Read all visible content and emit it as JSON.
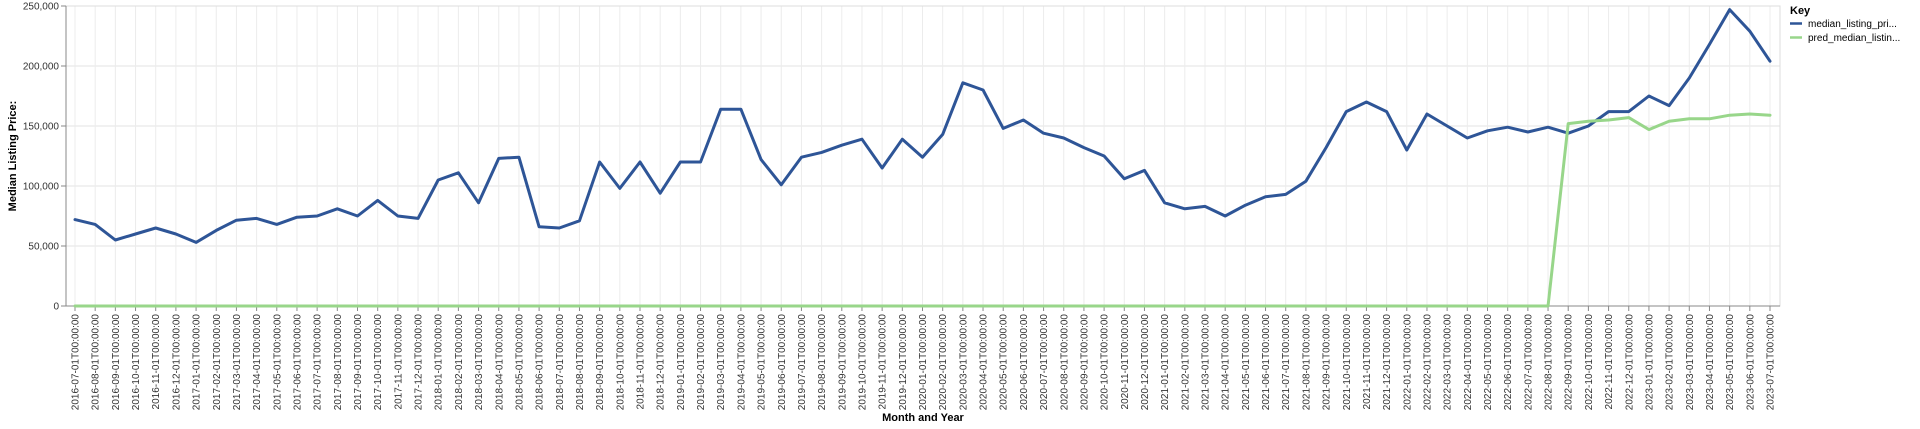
{
  "chart_data": {
    "type": "line",
    "xlabel": "Month and Year",
    "ylabel": "Median Listing Price:",
    "ylim": [
      0,
      250000
    ],
    "y_ticks": [
      {
        "value": 0,
        "label": "0"
      },
      {
        "value": 50000,
        "label": "50,000"
      },
      {
        "value": 100000,
        "label": "100,000"
      },
      {
        "value": 150000,
        "label": "150,000"
      },
      {
        "value": 200000,
        "label": "200,000"
      },
      {
        "value": 250000,
        "label": "250,000"
      }
    ],
    "grid": true,
    "legend": {
      "title": "Key",
      "position": "top-right"
    },
    "x": [
      "2016-07-01T00:00:00",
      "2016-08-01T00:00:00",
      "2016-09-01T00:00:00",
      "2016-10-01T00:00:00",
      "2016-11-01T00:00:00",
      "2016-12-01T00:00:00",
      "2017-01-01T00:00:00",
      "2017-02-01T00:00:00",
      "2017-03-01T00:00:00",
      "2017-04-01T00:00:00",
      "2017-05-01T00:00:00",
      "2017-06-01T00:00:00",
      "2017-07-01T00:00:00",
      "2017-08-01T00:00:00",
      "2017-09-01T00:00:00",
      "2017-10-01T00:00:00",
      "2017-11-01T00:00:00",
      "2017-12-01T00:00:00",
      "2018-01-01T00:00:00",
      "2018-02-01T00:00:00",
      "2018-03-01T00:00:00",
      "2018-04-01T00:00:00",
      "2018-05-01T00:00:00",
      "2018-06-01T00:00:00",
      "2018-07-01T00:00:00",
      "2018-08-01T00:00:00",
      "2018-09-01T00:00:00",
      "2018-10-01T00:00:00",
      "2018-11-01T00:00:00",
      "2018-12-01T00:00:00",
      "2019-01-01T00:00:00",
      "2019-02-01T00:00:00",
      "2019-03-01T00:00:00",
      "2019-04-01T00:00:00",
      "2019-05-01T00:00:00",
      "2019-06-01T00:00:00",
      "2019-07-01T00:00:00",
      "2019-08-01T00:00:00",
      "2019-09-01T00:00:00",
      "2019-10-01T00:00:00",
      "2019-11-01T00:00:00",
      "2019-12-01T00:00:00",
      "2020-01-01T00:00:00",
      "2020-02-01T00:00:00",
      "2020-03-01T00:00:00",
      "2020-04-01T00:00:00",
      "2020-05-01T00:00:00",
      "2020-06-01T00:00:00",
      "2020-07-01T00:00:00",
      "2020-08-01T00:00:00",
      "2020-09-01T00:00:00",
      "2020-10-01T00:00:00",
      "2020-11-01T00:00:00",
      "2020-12-01T00:00:00",
      "2021-01-01T00:00:00",
      "2021-02-01T00:00:00",
      "2021-03-01T00:00:00",
      "2021-04-01T00:00:00",
      "2021-05-01T00:00:00",
      "2021-06-01T00:00:00",
      "2021-07-01T00:00:00",
      "2021-08-01T00:00:00",
      "2021-09-01T00:00:00",
      "2021-10-01T00:00:00",
      "2021-11-01T00:00:00",
      "2021-12-01T00:00:00",
      "2022-01-01T00:00:00",
      "2022-02-01T00:00:00",
      "2022-03-01T00:00:00",
      "2022-04-01T00:00:00",
      "2022-05-01T00:00:00",
      "2022-06-01T00:00:00",
      "2022-07-01T00:00:00",
      "2022-08-01T00:00:00",
      "2022-09-01T00:00:00",
      "2022-10-01T00:00:00",
      "2022-11-01T00:00:00",
      "2022-12-01T00:00:00",
      "2023-01-01T00:00:00",
      "2023-02-01T00:00:00",
      "2023-03-01T00:00:00",
      "2023-04-01T00:00:00",
      "2023-05-01T00:00:00",
      "2023-06-01T00:00:00",
      "2023-07-01T00:00:00"
    ],
    "series": [
      {
        "name": "median_listing_pri...",
        "color": "#2e5597",
        "values": [
          72000,
          68000,
          55000,
          60000,
          65000,
          60000,
          53000,
          63000,
          71500,
          73000,
          68000,
          74000,
          75000,
          81000,
          75000,
          88000,
          75000,
          73000,
          105000,
          111000,
          86000,
          123000,
          124000,
          66000,
          65000,
          71000,
          120000,
          98000,
          120000,
          94000,
          120000,
          120000,
          164000,
          164000,
          122000,
          101000,
          124000,
          128000,
          134000,
          139000,
          115000,
          139000,
          124000,
          143000,
          186000,
          180000,
          148000,
          155000,
          144000,
          140000,
          132000,
          125000,
          106000,
          113000,
          86000,
          81000,
          83000,
          75000,
          84000,
          91000,
          93000,
          104000,
          132000,
          162000,
          170000,
          162000,
          130000,
          160000,
          150000,
          140000,
          146000,
          149000,
          145000,
          149000,
          144000,
          150000,
          162000,
          162000,
          175000,
          167000,
          190000,
          218000,
          247000,
          229000,
          204000
        ]
      },
      {
        "name": "pred_median_listin...",
        "color": "#98d68a",
        "values": [
          0,
          0,
          0,
          0,
          0,
          0,
          0,
          0,
          0,
          0,
          0,
          0,
          0,
          0,
          0,
          0,
          0,
          0,
          0,
          0,
          0,
          0,
          0,
          0,
          0,
          0,
          0,
          0,
          0,
          0,
          0,
          0,
          0,
          0,
          0,
          0,
          0,
          0,
          0,
          0,
          0,
          0,
          0,
          0,
          0,
          0,
          0,
          0,
          0,
          0,
          0,
          0,
          0,
          0,
          0,
          0,
          0,
          0,
          0,
          0,
          0,
          0,
          0,
          0,
          0,
          0,
          0,
          0,
          0,
          0,
          0,
          0,
          0,
          0,
          152000,
          154000,
          155000,
          157000,
          147000,
          154000,
          156000,
          156000,
          159000,
          160000,
          159000
        ]
      }
    ]
  }
}
